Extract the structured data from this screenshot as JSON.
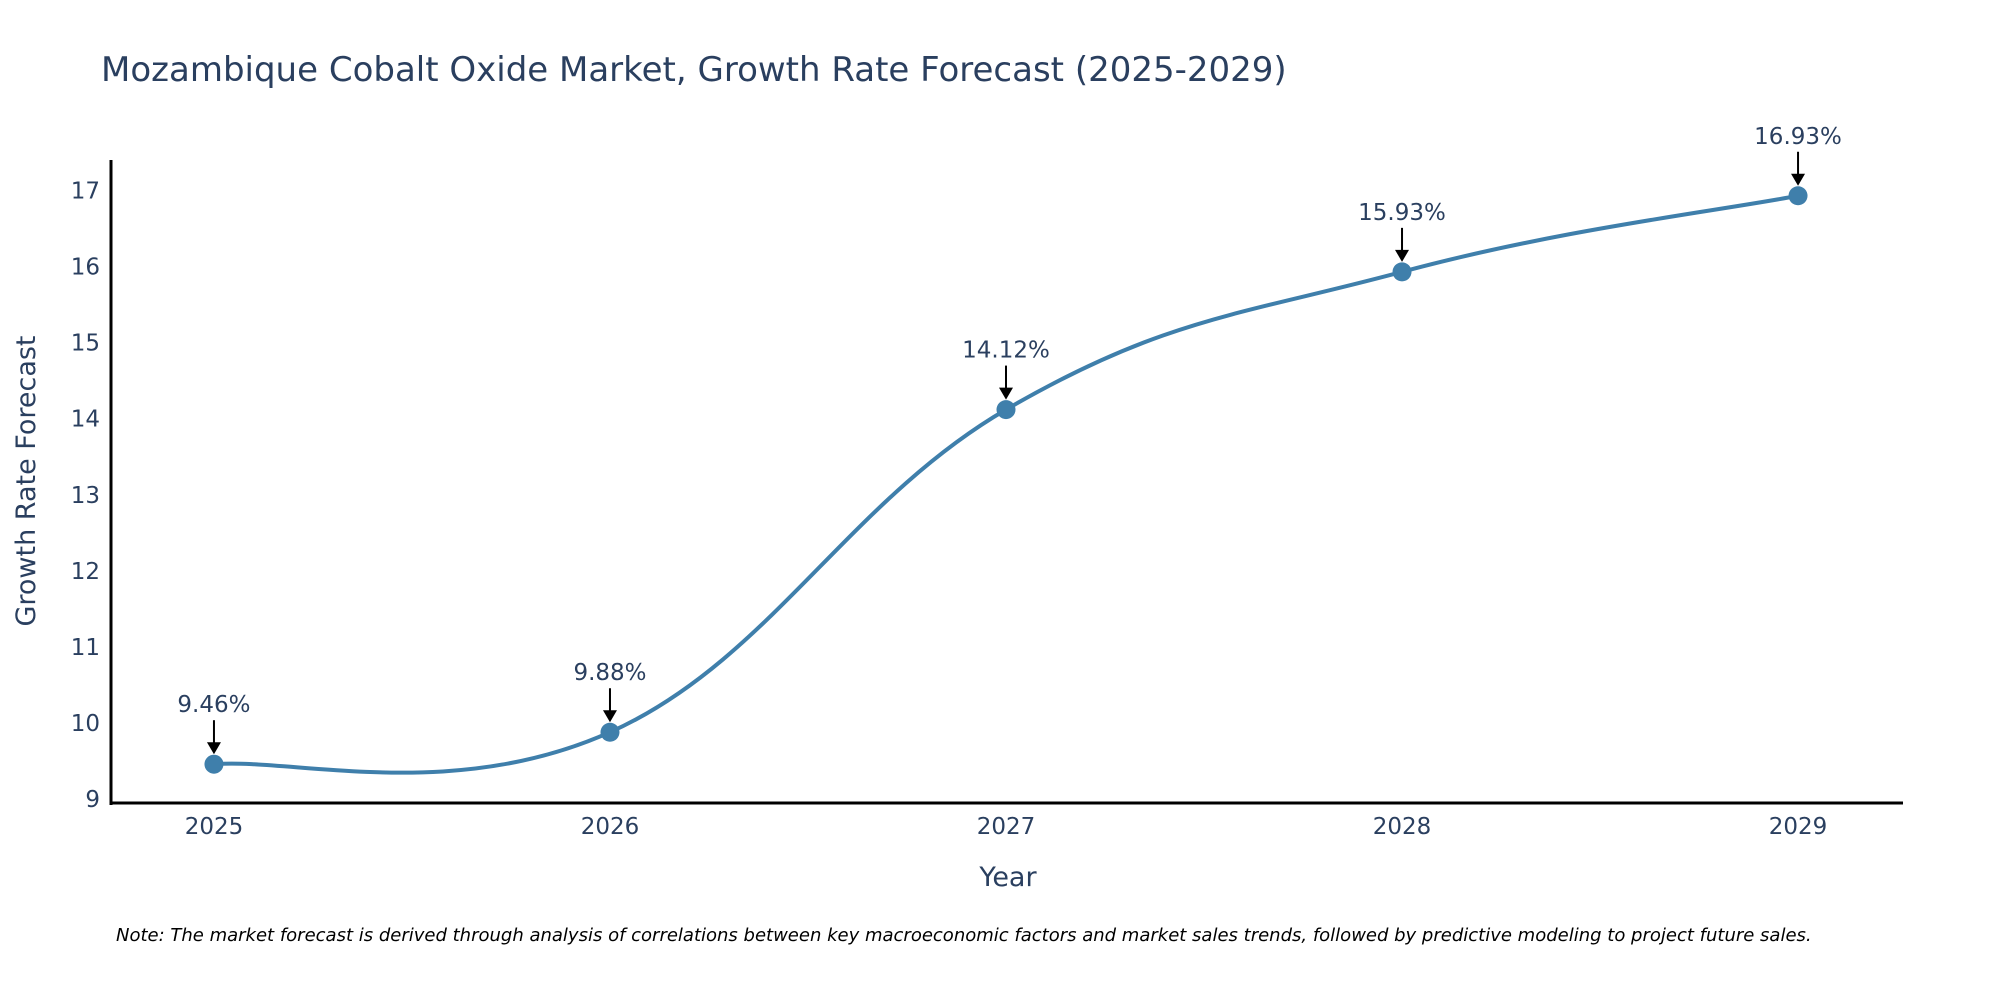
{
  "chart_data": {
    "type": "line",
    "title": "Mozambique Cobalt Oxide Market, Growth Rate Forecast (2025-2029)",
    "xlabel": "Year",
    "ylabel": "Growth Rate Forecast",
    "categories": [
      "2025",
      "2026",
      "2027",
      "2028",
      "2029"
    ],
    "values": [
      9.46,
      9.88,
      14.12,
      15.93,
      16.93
    ],
    "data_labels": [
      "9.46%",
      "9.88%",
      "14.12%",
      "15.93%",
      "16.93%"
    ],
    "y_ticks": [
      9,
      10,
      11,
      12,
      13,
      14,
      15,
      16,
      17
    ],
    "ylim": [
      8.95,
      17.4
    ],
    "xlim": [
      2024.74,
      2029.26
    ],
    "grid": false,
    "line_shape": "spline",
    "note": "Note: The market forecast is derived through analysis of correlations between key macroeconomic factors and market sales trends, followed by predictive modeling to project future sales."
  },
  "colors": {
    "line": "#3f7fab",
    "marker": "#3f7fab",
    "text": "#2a3f5f",
    "axis": "#000000",
    "arrow": "#000000"
  }
}
